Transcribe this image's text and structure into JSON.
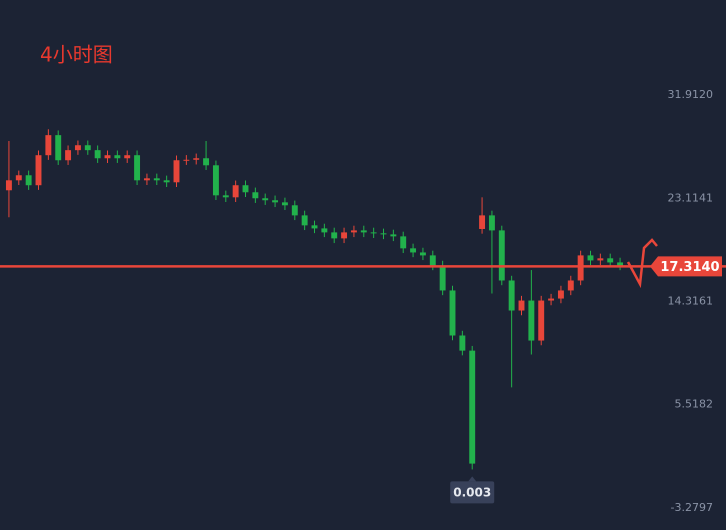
{
  "chart_data": {
    "type": "candlestick",
    "title": "4小时图",
    "up_color": "#e8463a",
    "down_color": "#22b24c",
    "grid": false,
    "ylim": [
      -5.16,
      40.02
    ],
    "yticks": [
      {
        "value": 31.912,
        "label": "31.9120"
      },
      {
        "value": 23.1141,
        "label": "23.1141"
      },
      {
        "value": 14.3161,
        "label": "14.3161"
      },
      {
        "value": 5.5182,
        "label": "5.5182"
      },
      {
        "value": -3.2797,
        "label": "-3.2797"
      }
    ],
    "open": [
      23.8,
      24.65,
      25.08,
      24.23,
      26.79,
      28.5,
      26.36,
      27.22,
      27.64,
      27.22,
      26.53,
      26.79,
      26.53,
      26.79,
      24.65,
      24.82,
      24.65,
      24.48,
      26.36,
      26.4,
      26.53,
      25.93,
      23.37,
      23.2,
      24.23,
      23.63,
      23.12,
      22.95,
      22.77,
      22.52,
      21.66,
      20.81,
      20.55,
      20.21,
      19.7,
      20.21,
      20.38,
      20.21,
      20.13,
      20.04,
      19.87,
      18.85,
      18.5,
      18.25,
      17.39,
      15.26,
      11.42,
      10.13,
      20.5,
      21.66,
      20.38,
      16.11,
      13.55,
      14.4,
      10.99,
      14.4,
      14.57,
      15.26,
      16.11,
      18.25,
      17.82,
      18.0,
      17.65
    ],
    "high": [
      28.0,
      25.48,
      25.48,
      27.19,
      29.0,
      28.9,
      27.62,
      28.04,
      28.04,
      27.62,
      27.19,
      27.19,
      27.19,
      27.19,
      25.22,
      25.22,
      25.05,
      26.76,
      26.8,
      26.93,
      28.0,
      26.33,
      23.77,
      24.63,
      24.63,
      24.03,
      23.52,
      23.35,
      23.17,
      22.92,
      22.06,
      21.21,
      20.95,
      20.61,
      20.61,
      20.78,
      20.78,
      20.61,
      20.53,
      20.44,
      20.27,
      19.25,
      18.9,
      18.65,
      17.79,
      15.66,
      11.82,
      10.53,
      23.2,
      22.06,
      20.78,
      16.51,
      14.8,
      17.0,
      14.8,
      14.97,
      15.66,
      16.51,
      18.65,
      18.65,
      18.4,
      18.4,
      18.05
    ],
    "low": [
      21.5,
      24.25,
      23.83,
      23.83,
      26.39,
      25.96,
      25.96,
      26.82,
      26.82,
      26.13,
      26.13,
      26.13,
      26.13,
      24.25,
      24.25,
      24.25,
      24.08,
      24.08,
      25.96,
      26.0,
      25.53,
      22.97,
      22.8,
      22.8,
      23.23,
      22.72,
      22.55,
      22.37,
      22.12,
      21.26,
      20.41,
      20.15,
      19.81,
      19.3,
      19.3,
      19.81,
      19.81,
      19.73,
      19.64,
      19.47,
      18.45,
      18.1,
      17.85,
      16.99,
      14.86,
      11.02,
      9.73,
      0.003,
      20.1,
      15.0,
      15.71,
      7.0,
      13.15,
      9.8,
      10.59,
      14.0,
      14.17,
      14.86,
      15.71,
      17.42,
      17.42,
      17.25,
      16.99
    ],
    "close": [
      24.65,
      25.08,
      24.23,
      26.79,
      28.5,
      26.36,
      27.22,
      27.64,
      27.22,
      26.53,
      26.79,
      26.53,
      26.79,
      24.65,
      24.82,
      24.65,
      24.48,
      26.36,
      26.4,
      26.53,
      25.93,
      23.37,
      23.2,
      24.23,
      23.63,
      23.12,
      22.95,
      22.77,
      22.52,
      21.66,
      20.81,
      20.55,
      20.21,
      19.7,
      20.21,
      20.38,
      20.21,
      20.13,
      20.04,
      19.87,
      18.85,
      18.5,
      18.25,
      17.39,
      15.26,
      11.42,
      10.13,
      0.5,
      21.66,
      20.38,
      16.11,
      13.55,
      14.4,
      10.99,
      14.4,
      14.57,
      15.26,
      16.11,
      18.25,
      17.82,
      18.0,
      17.65,
      17.314
    ],
    "last_price": {
      "value": 17.314,
      "label": "17.3140",
      "color": "#e8463a"
    },
    "min_annotation": {
      "value": 0.003,
      "label": "0.003"
    }
  }
}
